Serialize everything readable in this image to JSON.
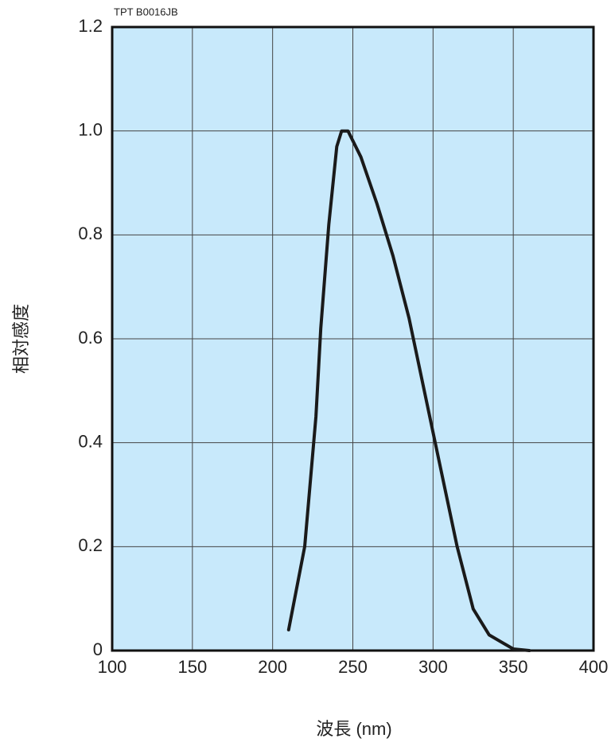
{
  "chart_data": {
    "type": "line",
    "annotation": "TPT B0016JB",
    "xlabel": "波長 (nm)",
    "ylabel": "相対感度",
    "x": [
      210,
      220,
      227,
      230,
      235,
      240,
      243,
      247,
      255,
      265,
      275,
      285,
      300,
      315,
      325,
      335,
      350,
      360
    ],
    "series": [
      {
        "color": "#1a1a1a",
        "values": [
          0.04,
          0.2,
          0.45,
          0.62,
          0.82,
          0.97,
          1.0,
          1.0,
          0.95,
          0.86,
          0.76,
          0.64,
          0.42,
          0.2,
          0.08,
          0.03,
          0.003,
          0
        ]
      }
    ],
    "xlim": [
      100,
      400
    ],
    "xticks": [
      100,
      150,
      200,
      250,
      300,
      350,
      400
    ],
    "ylim": [
      0,
      1.2
    ],
    "yticks": [
      0,
      0.2,
      0.4,
      0.6,
      0.8,
      {
        "value": 1,
        "label": "1.0"
      },
      1.2
    ],
    "grid": true,
    "background": "#c8e9fb"
  }
}
